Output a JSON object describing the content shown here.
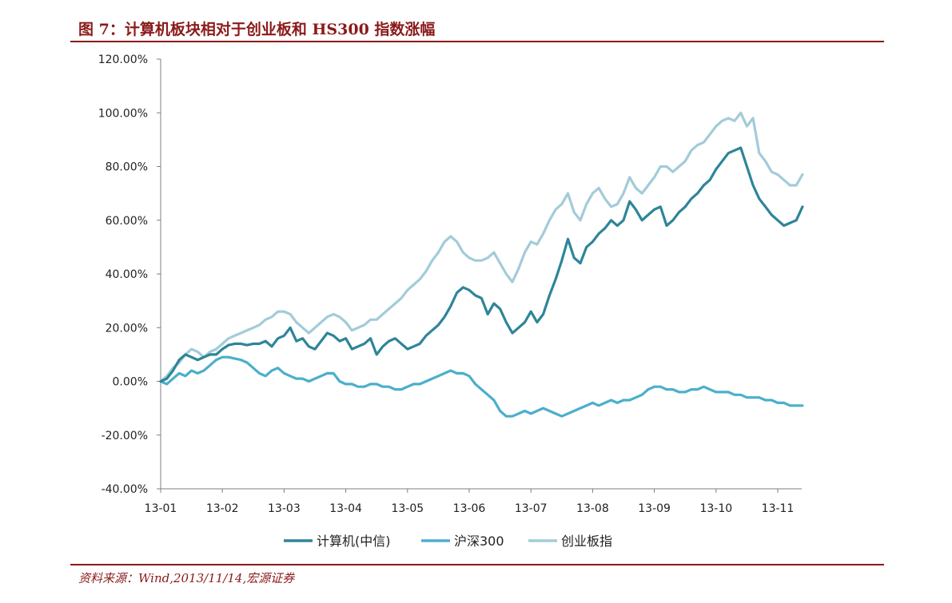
{
  "header": {
    "title": "图 7：计算机板块相对于创业板和 HS300 指数涨幅"
  },
  "footer": {
    "source": "资料来源：Wind,2013/11/14,宏源证券"
  },
  "chart_data": {
    "type": "line",
    "x_ticks": [
      "13-01",
      "13-02",
      "13-03",
      "13-04",
      "13-05",
      "13-06",
      "13-07",
      "13-08",
      "13-09",
      "13-10",
      "13-11"
    ],
    "y_ticks": [
      "120.00%",
      "100.00%",
      "80.00%",
      "60.00%",
      "40.00%",
      "20.00%",
      "0.00%",
      "-20.00%",
      "-40.00%"
    ],
    "ylim": [
      -40,
      120
    ],
    "xlim": [
      0,
      10.4
    ],
    "y_unit": "%",
    "grid": false,
    "legend_position": "bottom",
    "series": [
      {
        "name": "计算机(中信)",
        "color": "#2E8599",
        "points": [
          [
            0,
            0
          ],
          [
            0.1,
            1
          ],
          [
            0.2,
            4
          ],
          [
            0.3,
            8
          ],
          [
            0.4,
            10
          ],
          [
            0.5,
            9
          ],
          [
            0.6,
            8
          ],
          [
            0.7,
            9
          ],
          [
            0.8,
            10
          ],
          [
            0.9,
            10
          ],
          [
            1.0,
            12
          ],
          [
            1.1,
            13.5
          ],
          [
            1.2,
            14
          ],
          [
            1.3,
            14
          ],
          [
            1.4,
            13.5
          ],
          [
            1.5,
            14
          ],
          [
            1.6,
            14
          ],
          [
            1.7,
            15
          ],
          [
            1.8,
            13
          ],
          [
            1.9,
            16
          ],
          [
            2.0,
            17
          ],
          [
            2.1,
            20
          ],
          [
            2.2,
            15
          ],
          [
            2.3,
            16
          ],
          [
            2.4,
            13
          ],
          [
            2.5,
            12
          ],
          [
            2.6,
            15
          ],
          [
            2.7,
            18
          ],
          [
            2.8,
            17
          ],
          [
            2.9,
            15
          ],
          [
            3.0,
            16
          ],
          [
            3.1,
            12
          ],
          [
            3.2,
            13
          ],
          [
            3.3,
            14
          ],
          [
            3.4,
            16
          ],
          [
            3.5,
            10
          ],
          [
            3.6,
            13
          ],
          [
            3.7,
            15
          ],
          [
            3.8,
            16
          ],
          [
            3.9,
            14
          ],
          [
            4.0,
            12
          ],
          [
            4.1,
            13
          ],
          [
            4.2,
            14
          ],
          [
            4.3,
            17
          ],
          [
            4.4,
            19
          ],
          [
            4.5,
            21
          ],
          [
            4.6,
            24
          ],
          [
            4.7,
            28
          ],
          [
            4.8,
            33
          ],
          [
            4.9,
            35
          ],
          [
            5.0,
            34
          ],
          [
            5.1,
            32
          ],
          [
            5.2,
            31
          ],
          [
            5.3,
            25
          ],
          [
            5.4,
            29
          ],
          [
            5.5,
            27
          ],
          [
            5.6,
            22
          ],
          [
            5.7,
            18
          ],
          [
            5.8,
            20
          ],
          [
            5.9,
            22
          ],
          [
            6.0,
            26
          ],
          [
            6.1,
            22
          ],
          [
            6.2,
            25
          ],
          [
            6.3,
            32
          ],
          [
            6.4,
            38
          ],
          [
            6.5,
            45
          ],
          [
            6.6,
            53
          ],
          [
            6.7,
            46
          ],
          [
            6.8,
            44
          ],
          [
            6.9,
            50
          ],
          [
            7.0,
            52
          ],
          [
            7.1,
            55
          ],
          [
            7.2,
            57
          ],
          [
            7.3,
            60
          ],
          [
            7.4,
            58
          ],
          [
            7.5,
            60
          ],
          [
            7.6,
            67
          ],
          [
            7.7,
            64
          ],
          [
            7.8,
            60
          ],
          [
            7.9,
            62
          ],
          [
            8.0,
            64
          ],
          [
            8.1,
            65
          ],
          [
            8.2,
            58
          ],
          [
            8.3,
            60
          ],
          [
            8.4,
            63
          ],
          [
            8.5,
            65
          ],
          [
            8.6,
            68
          ],
          [
            8.7,
            70
          ],
          [
            8.8,
            73
          ],
          [
            8.9,
            75
          ],
          [
            9.0,
            79
          ],
          [
            9.1,
            82
          ],
          [
            9.2,
            85
          ],
          [
            9.3,
            86
          ],
          [
            9.4,
            87
          ],
          [
            9.5,
            80
          ],
          [
            9.6,
            73
          ],
          [
            9.7,
            68
          ],
          [
            9.8,
            65
          ],
          [
            9.9,
            62
          ],
          [
            10.0,
            60
          ],
          [
            10.1,
            58
          ],
          [
            10.2,
            59
          ],
          [
            10.3,
            60
          ],
          [
            10.4,
            65
          ]
        ]
      },
      {
        "name": "沪深300",
        "color": "#4BAFCB",
        "points": [
          [
            0,
            0
          ],
          [
            0.1,
            -1
          ],
          [
            0.2,
            1
          ],
          [
            0.3,
            3
          ],
          [
            0.4,
            2
          ],
          [
            0.5,
            4
          ],
          [
            0.6,
            3
          ],
          [
            0.7,
            4
          ],
          [
            0.8,
            6
          ],
          [
            0.9,
            8
          ],
          [
            1.0,
            9
          ],
          [
            1.1,
            9
          ],
          [
            1.2,
            8.5
          ],
          [
            1.3,
            8
          ],
          [
            1.4,
            7
          ],
          [
            1.5,
            5
          ],
          [
            1.6,
            3
          ],
          [
            1.7,
            2
          ],
          [
            1.8,
            4
          ],
          [
            1.9,
            5
          ],
          [
            2.0,
            3
          ],
          [
            2.1,
            2
          ],
          [
            2.2,
            1
          ],
          [
            2.3,
            1
          ],
          [
            2.4,
            0
          ],
          [
            2.5,
            1
          ],
          [
            2.6,
            2
          ],
          [
            2.7,
            3
          ],
          [
            2.8,
            3
          ],
          [
            2.9,
            0
          ],
          [
            3.0,
            -1
          ],
          [
            3.1,
            -1
          ],
          [
            3.2,
            -2
          ],
          [
            3.3,
            -2
          ],
          [
            3.4,
            -1
          ],
          [
            3.5,
            -1
          ],
          [
            3.6,
            -2
          ],
          [
            3.7,
            -2
          ],
          [
            3.8,
            -3
          ],
          [
            3.9,
            -3
          ],
          [
            4.0,
            -2
          ],
          [
            4.1,
            -1
          ],
          [
            4.2,
            -1
          ],
          [
            4.3,
            0
          ],
          [
            4.4,
            1
          ],
          [
            4.5,
            2
          ],
          [
            4.6,
            3
          ],
          [
            4.7,
            4
          ],
          [
            4.8,
            3
          ],
          [
            4.9,
            3
          ],
          [
            5.0,
            2
          ],
          [
            5.1,
            -1
          ],
          [
            5.2,
            -3
          ],
          [
            5.3,
            -5
          ],
          [
            5.4,
            -7
          ],
          [
            5.5,
            -11
          ],
          [
            5.6,
            -13
          ],
          [
            5.7,
            -13
          ],
          [
            5.8,
            -12
          ],
          [
            5.9,
            -11
          ],
          [
            6.0,
            -12
          ],
          [
            6.1,
            -11
          ],
          [
            6.2,
            -10
          ],
          [
            6.3,
            -11
          ],
          [
            6.4,
            -12
          ],
          [
            6.5,
            -13
          ],
          [
            6.6,
            -12
          ],
          [
            6.7,
            -11
          ],
          [
            6.8,
            -10
          ],
          [
            6.9,
            -9
          ],
          [
            7.0,
            -8
          ],
          [
            7.1,
            -9
          ],
          [
            7.2,
            -8
          ],
          [
            7.3,
            -7
          ],
          [
            7.4,
            -8
          ],
          [
            7.5,
            -7
          ],
          [
            7.6,
            -7
          ],
          [
            7.7,
            -6
          ],
          [
            7.8,
            -5
          ],
          [
            7.9,
            -3
          ],
          [
            8.0,
            -2
          ],
          [
            8.1,
            -2
          ],
          [
            8.2,
            -3
          ],
          [
            8.3,
            -3
          ],
          [
            8.4,
            -4
          ],
          [
            8.5,
            -4
          ],
          [
            8.6,
            -3
          ],
          [
            8.7,
            -3
          ],
          [
            8.8,
            -2
          ],
          [
            8.9,
            -3
          ],
          [
            9.0,
            -4
          ],
          [
            9.1,
            -4
          ],
          [
            9.2,
            -4
          ],
          [
            9.3,
            -5
          ],
          [
            9.4,
            -5
          ],
          [
            9.5,
            -6
          ],
          [
            9.6,
            -6
          ],
          [
            9.7,
            -6
          ],
          [
            9.8,
            -7
          ],
          [
            9.9,
            -7
          ],
          [
            10.0,
            -8
          ],
          [
            10.1,
            -8
          ],
          [
            10.2,
            -9
          ],
          [
            10.3,
            -9
          ],
          [
            10.4,
            -9
          ]
        ]
      },
      {
        "name": "创业板指",
        "color": "#A3CBD9",
        "points": [
          [
            0,
            0
          ],
          [
            0.1,
            2
          ],
          [
            0.2,
            5
          ],
          [
            0.3,
            7
          ],
          [
            0.4,
            10
          ],
          [
            0.5,
            12
          ],
          [
            0.6,
            11
          ],
          [
            0.7,
            9
          ],
          [
            0.8,
            11
          ],
          [
            0.9,
            12
          ],
          [
            1.0,
            14
          ],
          [
            1.1,
            16
          ],
          [
            1.2,
            17
          ],
          [
            1.3,
            18
          ],
          [
            1.4,
            19
          ],
          [
            1.5,
            20
          ],
          [
            1.6,
            21
          ],
          [
            1.7,
            23
          ],
          [
            1.8,
            24
          ],
          [
            1.9,
            26
          ],
          [
            2.0,
            26
          ],
          [
            2.1,
            25
          ],
          [
            2.2,
            22
          ],
          [
            2.3,
            20
          ],
          [
            2.4,
            18
          ],
          [
            2.5,
            20
          ],
          [
            2.6,
            22
          ],
          [
            2.7,
            24
          ],
          [
            2.8,
            25
          ],
          [
            2.9,
            24
          ],
          [
            3.0,
            22
          ],
          [
            3.1,
            19
          ],
          [
            3.2,
            20
          ],
          [
            3.3,
            21
          ],
          [
            3.4,
            23
          ],
          [
            3.5,
            23
          ],
          [
            3.6,
            25
          ],
          [
            3.7,
            27
          ],
          [
            3.8,
            29
          ],
          [
            3.9,
            31
          ],
          [
            4.0,
            34
          ],
          [
            4.1,
            36
          ],
          [
            4.2,
            38
          ],
          [
            4.3,
            41
          ],
          [
            4.4,
            45
          ],
          [
            4.5,
            48
          ],
          [
            4.6,
            52
          ],
          [
            4.7,
            54
          ],
          [
            4.8,
            52
          ],
          [
            4.9,
            48
          ],
          [
            5.0,
            46
          ],
          [
            5.1,
            45
          ],
          [
            5.2,
            45
          ],
          [
            5.3,
            46
          ],
          [
            5.4,
            48
          ],
          [
            5.5,
            44
          ],
          [
            5.6,
            40
          ],
          [
            5.7,
            37
          ],
          [
            5.8,
            42
          ],
          [
            5.9,
            48
          ],
          [
            6.0,
            52
          ],
          [
            6.1,
            51
          ],
          [
            6.2,
            55
          ],
          [
            6.3,
            60
          ],
          [
            6.4,
            64
          ],
          [
            6.5,
            66
          ],
          [
            6.6,
            70
          ],
          [
            6.7,
            63
          ],
          [
            6.8,
            60
          ],
          [
            6.9,
            66
          ],
          [
            7.0,
            70
          ],
          [
            7.1,
            72
          ],
          [
            7.2,
            68
          ],
          [
            7.3,
            65
          ],
          [
            7.4,
            66
          ],
          [
            7.5,
            70
          ],
          [
            7.6,
            76
          ],
          [
            7.7,
            72
          ],
          [
            7.8,
            70
          ],
          [
            7.9,
            73
          ],
          [
            8.0,
            76
          ],
          [
            8.1,
            80
          ],
          [
            8.2,
            80
          ],
          [
            8.3,
            78
          ],
          [
            8.4,
            80
          ],
          [
            8.5,
            82
          ],
          [
            8.6,
            86
          ],
          [
            8.7,
            88
          ],
          [
            8.8,
            89
          ],
          [
            8.9,
            92
          ],
          [
            9.0,
            95
          ],
          [
            9.1,
            97
          ],
          [
            9.2,
            98
          ],
          [
            9.3,
            97
          ],
          [
            9.4,
            100
          ],
          [
            9.5,
            95
          ],
          [
            9.6,
            98
          ],
          [
            9.7,
            85
          ],
          [
            9.8,
            82
          ],
          [
            9.9,
            78
          ],
          [
            10.0,
            77
          ],
          [
            10.1,
            75
          ],
          [
            10.2,
            73
          ],
          [
            10.3,
            73
          ],
          [
            10.4,
            77
          ]
        ]
      }
    ]
  }
}
